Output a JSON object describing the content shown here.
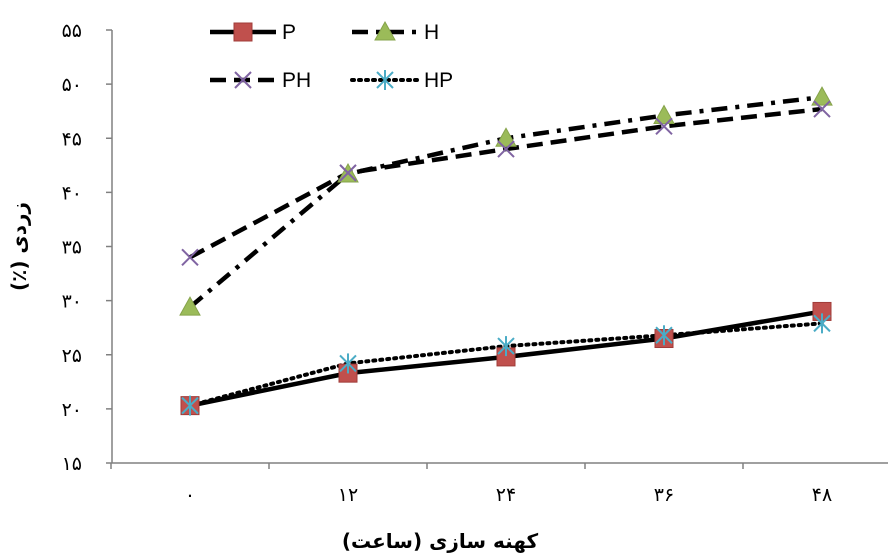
{
  "chart_data": {
    "type": "line",
    "xlabel": "کهنه سازی (ساعت)",
    "ylabel": "زردی (٪)",
    "categories": [
      "۰",
      "۱۲",
      "۲۴",
      "۳۶",
      "۴۸"
    ],
    "x": [
      0,
      12,
      24,
      36,
      48
    ],
    "ylim": [
      15,
      55
    ],
    "yticks": [
      15,
      20,
      25,
      30,
      35,
      40,
      45,
      50,
      55
    ],
    "ytick_labels": [
      "۱۵",
      "۲۰",
      "۲۵",
      "۳۰",
      "۳۵",
      "۴۰",
      "۴۵",
      "۵۰",
      "۵۵"
    ],
    "grid": false,
    "legend_position": "top-left",
    "series": [
      {
        "name": "P",
        "values": [
          20.3,
          23.3,
          24.8,
          26.5,
          29.0
        ],
        "line": "solid",
        "marker": "square",
        "color": "#c0504d",
        "line_color": "#000000"
      },
      {
        "name": "H",
        "values": [
          29.4,
          41.7,
          45.0,
          47.1,
          48.8
        ],
        "line": "dashdot",
        "marker": "triangle",
        "color": "#9bbb59",
        "line_color": "#000000"
      },
      {
        "name": "PH",
        "values": [
          34.0,
          41.8,
          44.0,
          46.1,
          47.7
        ],
        "line": "dashed",
        "marker": "x",
        "color": "#8064a2",
        "line_color": "#000000"
      },
      {
        "name": "HP",
        "values": [
          20.3,
          24.2,
          25.8,
          26.8,
          27.9
        ],
        "line": "dotted",
        "marker": "asterisk",
        "color": "#4bacc6",
        "line_color": "#000000"
      }
    ]
  }
}
